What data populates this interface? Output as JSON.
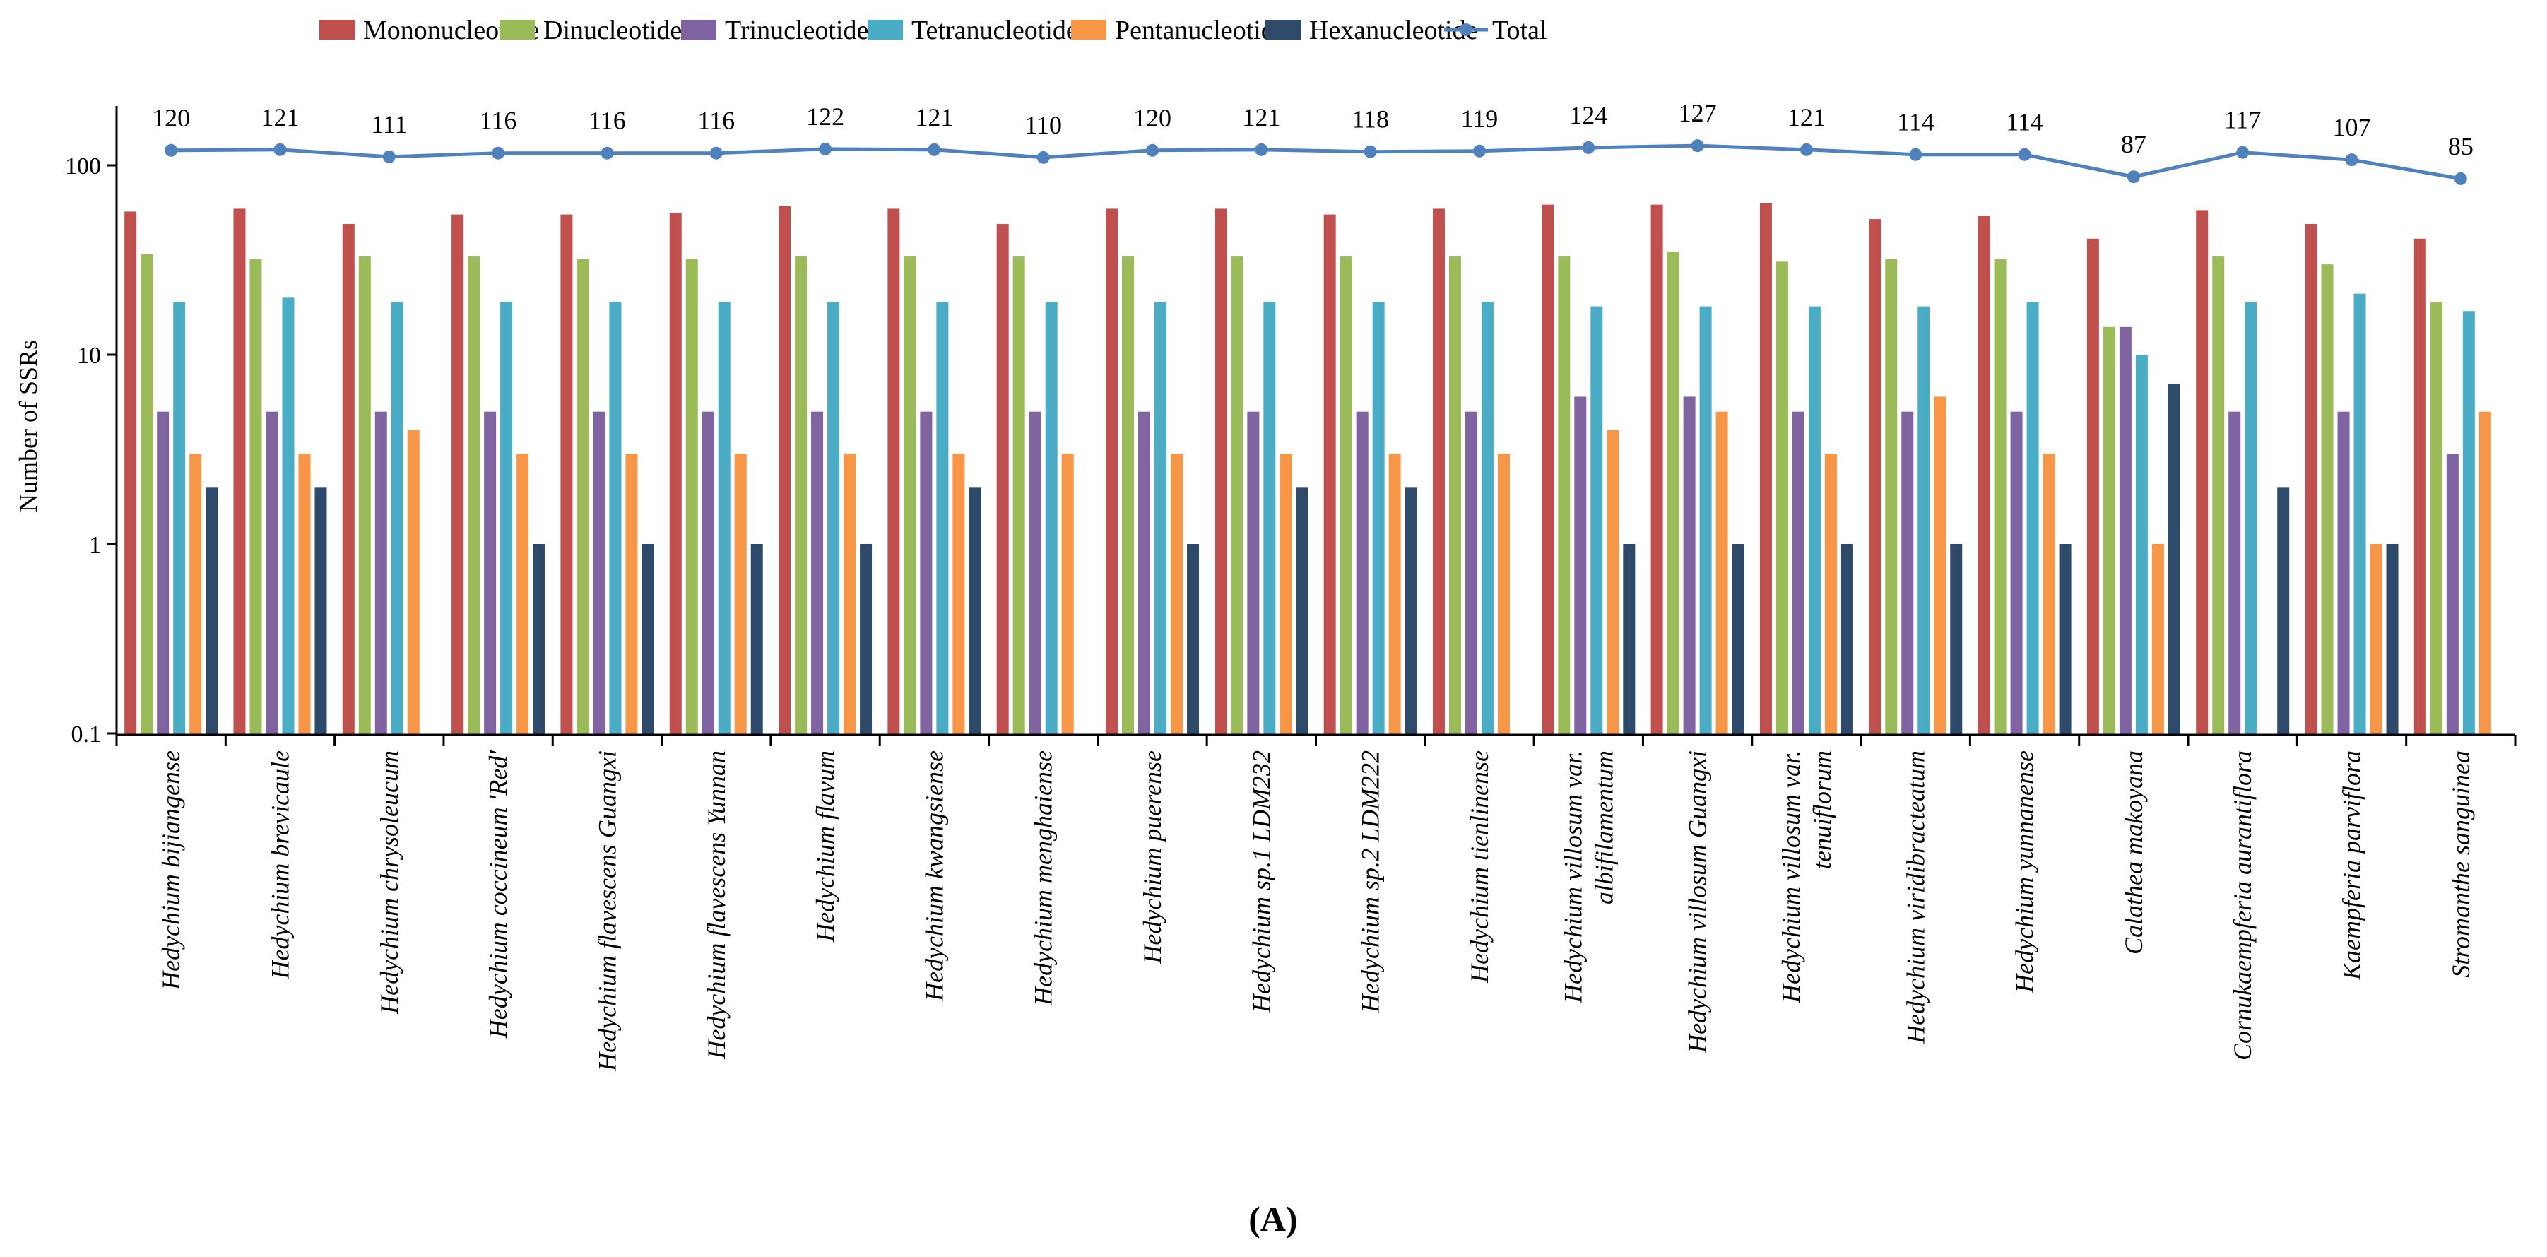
{
  "chart_data": {
    "type": "bar",
    "yscale": "log",
    "ylim": [
      0.1,
      300
    ],
    "ylabel": "Number of SSRs",
    "yticks": [
      {
        "value": 0.1,
        "label": "0.1"
      },
      {
        "value": 1,
        "label": "1"
      },
      {
        "value": 10,
        "label": "10"
      },
      {
        "value": 100,
        "label": "100"
      }
    ],
    "panel_label": "(A)",
    "categories": [
      [
        "Hedychium bijiangense"
      ],
      [
        "Hedychium brevicaule"
      ],
      [
        "Hedychium chrysoleucum"
      ],
      [
        "Hedychium coccineum 'Red'"
      ],
      [
        "Hedychium flavescens Guangxi"
      ],
      [
        "Hedychium flavescens Yunnan"
      ],
      [
        "Hedychium flavum"
      ],
      [
        "Hedychium kwangsiense"
      ],
      [
        "Hedychium menghaiense"
      ],
      [
        "Hedychium puerense"
      ],
      [
        "Hedychium sp.1 LDM232"
      ],
      [
        "Hedychium sp.2 LDM222"
      ],
      [
        "Hedychium tienlinense"
      ],
      [
        "Hedychium villosum var.",
        "albifilamentum"
      ],
      [
        "Hedychium villosum Guangxi"
      ],
      [
        "Hedychium villosum var.",
        "tenuiflorum"
      ],
      [
        "Hedychium viridibracteatum"
      ],
      [
        "Hedychium yunnanense"
      ],
      [
        "Calathea makoyana"
      ],
      [
        "Cornukaempferia aurantiflora"
      ],
      [
        "Kaempferia parviflora"
      ],
      [
        "Stromanthe sanguinea"
      ]
    ],
    "series": [
      {
        "name": "Mononucleotide",
        "color": "#c0504d",
        "values": [
          57,
          59,
          49,
          55,
          55,
          56,
          61,
          59,
          49,
          59,
          59,
          55,
          59,
          62,
          62,
          63,
          52,
          54,
          41,
          58,
          49,
          41
        ]
      },
      {
        "name": "Dinucleotide",
        "color": "#9bbb59",
        "values": [
          34,
          32,
          33,
          33,
          32,
          32,
          33,
          33,
          33,
          33,
          33,
          33,
          33,
          33,
          35,
          31,
          32,
          32,
          14,
          33,
          30,
          19
        ]
      },
      {
        "name": "Trinucleotide",
        "color": "#8064a2",
        "values": [
          5,
          5,
          5,
          5,
          5,
          5,
          5,
          5,
          5,
          5,
          5,
          5,
          5,
          6,
          6,
          5,
          5,
          5,
          14,
          5,
          5,
          3
        ]
      },
      {
        "name": "Tetranucleotide",
        "color": "#4bacc6",
        "values": [
          19,
          20,
          19,
          19,
          19,
          19,
          19,
          19,
          19,
          19,
          19,
          19,
          19,
          18,
          18,
          18,
          18,
          19,
          10,
          19,
          21,
          17
        ]
      },
      {
        "name": "Pentanucleotide",
        "color": "#f79646",
        "values": [
          3,
          3,
          4,
          3,
          3,
          3,
          3,
          3,
          3,
          3,
          3,
          3,
          3,
          4,
          5,
          3,
          6,
          3,
          1,
          null,
          1,
          5
        ]
      },
      {
        "name": "Hexanucleotide",
        "color": "#2e4a6b",
        "values": [
          2,
          2,
          null,
          1,
          1,
          1,
          1,
          2,
          null,
          1,
          2,
          2,
          null,
          1,
          1,
          1,
          1,
          1,
          7,
          2,
          1,
          null
        ]
      }
    ],
    "total": {
      "name": "Total",
      "color": "#4f81bd",
      "values": [
        120,
        121,
        111,
        116,
        116,
        116,
        122,
        121,
        110,
        120,
        121,
        118,
        119,
        124,
        127,
        121,
        114,
        114,
        87,
        117,
        107,
        85
      ]
    },
    "legend_position": "top"
  }
}
